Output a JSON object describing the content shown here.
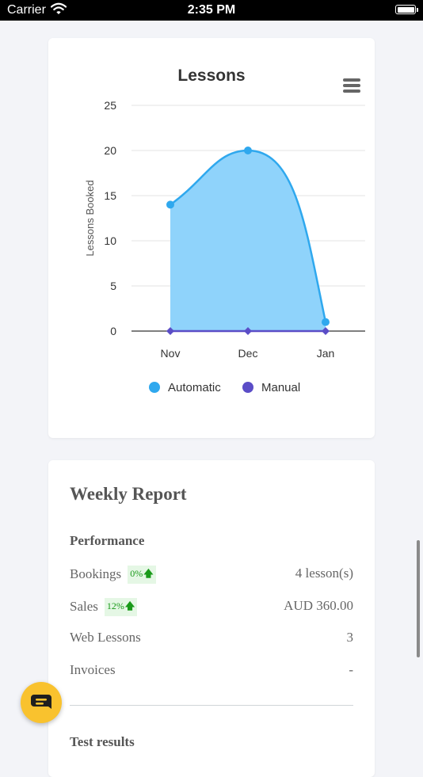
{
  "status_bar": {
    "carrier": "Carrier",
    "time": "2:35 PM"
  },
  "chart_card": {
    "menu_icon": "hamburger-menu-icon",
    "chart_data": {
      "type": "area",
      "title": "Lessons",
      "xlabel": "",
      "ylabel": "Lessons Booked",
      "categories": [
        "Nov",
        "Dec",
        "Jan"
      ],
      "ylim": [
        0,
        25
      ],
      "yticks": [
        "0",
        "5",
        "10",
        "15",
        "20",
        "25"
      ],
      "grid": true,
      "legend": "bottom",
      "series": [
        {
          "name": "Automatic",
          "values": [
            14,
            20,
            1
          ],
          "color": "#2fa8ee",
          "fill": "#8fd3fb",
          "marker": "circle"
        },
        {
          "name": "Manual",
          "values": [
            0,
            0,
            0
          ],
          "color": "#5b4dc7",
          "marker": "diamond"
        }
      ]
    }
  },
  "report": {
    "title": "Weekly Report",
    "performance_title": "Performance",
    "rows": [
      {
        "label": "Bookings",
        "badge": "0%",
        "value": "4 lesson(s)"
      },
      {
        "label": "Sales",
        "badge": "12%",
        "value": "AUD 360.00"
      },
      {
        "label": "Web Lessons",
        "value": "3"
      },
      {
        "label": "Invoices",
        "value": "-"
      }
    ],
    "test_results_title": "Test results",
    "badge_arrow_icon": "arrow-up-icon",
    "badge_color": "#1a9a1a"
  },
  "chat_button": {
    "icon": "chat-bubble-icon",
    "color": "#f9c22e"
  }
}
